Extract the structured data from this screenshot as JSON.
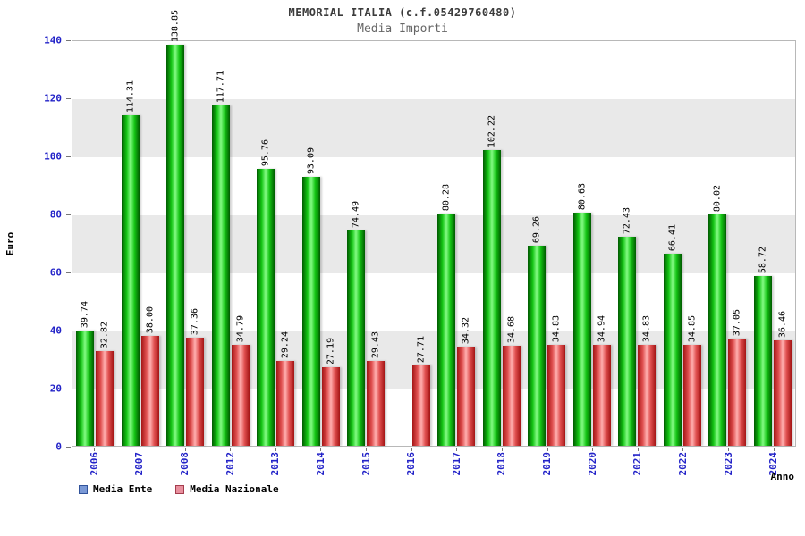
{
  "chart_data": {
    "type": "bar",
    "title": "MEMORIAL ITALIA (c.f.05429760480)",
    "subtitle": "Media Importi",
    "xlabel": "Anno",
    "ylabel": "Euro",
    "ylim": [
      0,
      140
    ],
    "yticks": [
      0,
      20,
      40,
      60,
      80,
      100,
      120,
      140
    ],
    "grid": "alternating horizontal gray bands every 20 units",
    "legend_position": "bottom-left",
    "value_labels": "rotated 90 degrees above each bar",
    "categories": [
      "2006",
      "2007",
      "2008",
      "2012",
      "2013",
      "2014",
      "2015",
      "2016",
      "2017",
      "2018",
      "2019",
      "2020",
      "2021",
      "2022",
      "2023",
      "2024"
    ],
    "series": [
      {
        "name": "Media Ente",
        "key": "media-ente",
        "values": [
          39.74,
          114.31,
          138.85,
          117.71,
          95.76,
          93.09,
          74.49,
          null,
          80.28,
          102.22,
          69.26,
          80.63,
          72.43,
          66.41,
          80.02,
          58.72
        ],
        "bar_colors": {
          "edge": "#005a00",
          "mid": "#14c414",
          "light": "#84fb84"
        },
        "legend_swatch": {
          "fill": "#7a99d6",
          "border": "#31539b"
        }
      },
      {
        "name": "Media Nazionale",
        "key": "media-nazionale",
        "values": [
          32.82,
          38.0,
          37.36,
          34.79,
          29.24,
          27.19,
          29.43,
          27.71,
          34.32,
          34.68,
          34.83,
          34.94,
          34.83,
          34.85,
          37.05,
          36.46
        ],
        "bar_colors": {
          "edge": "#a31515",
          "mid": "#e04f4f",
          "light": "#ffb0b0"
        },
        "legend_swatch": {
          "fill": "#e8909e",
          "border": "#a43d4d"
        }
      }
    ],
    "axis_tick_label_color": "#2323c8",
    "value_label_color": "#000000"
  }
}
